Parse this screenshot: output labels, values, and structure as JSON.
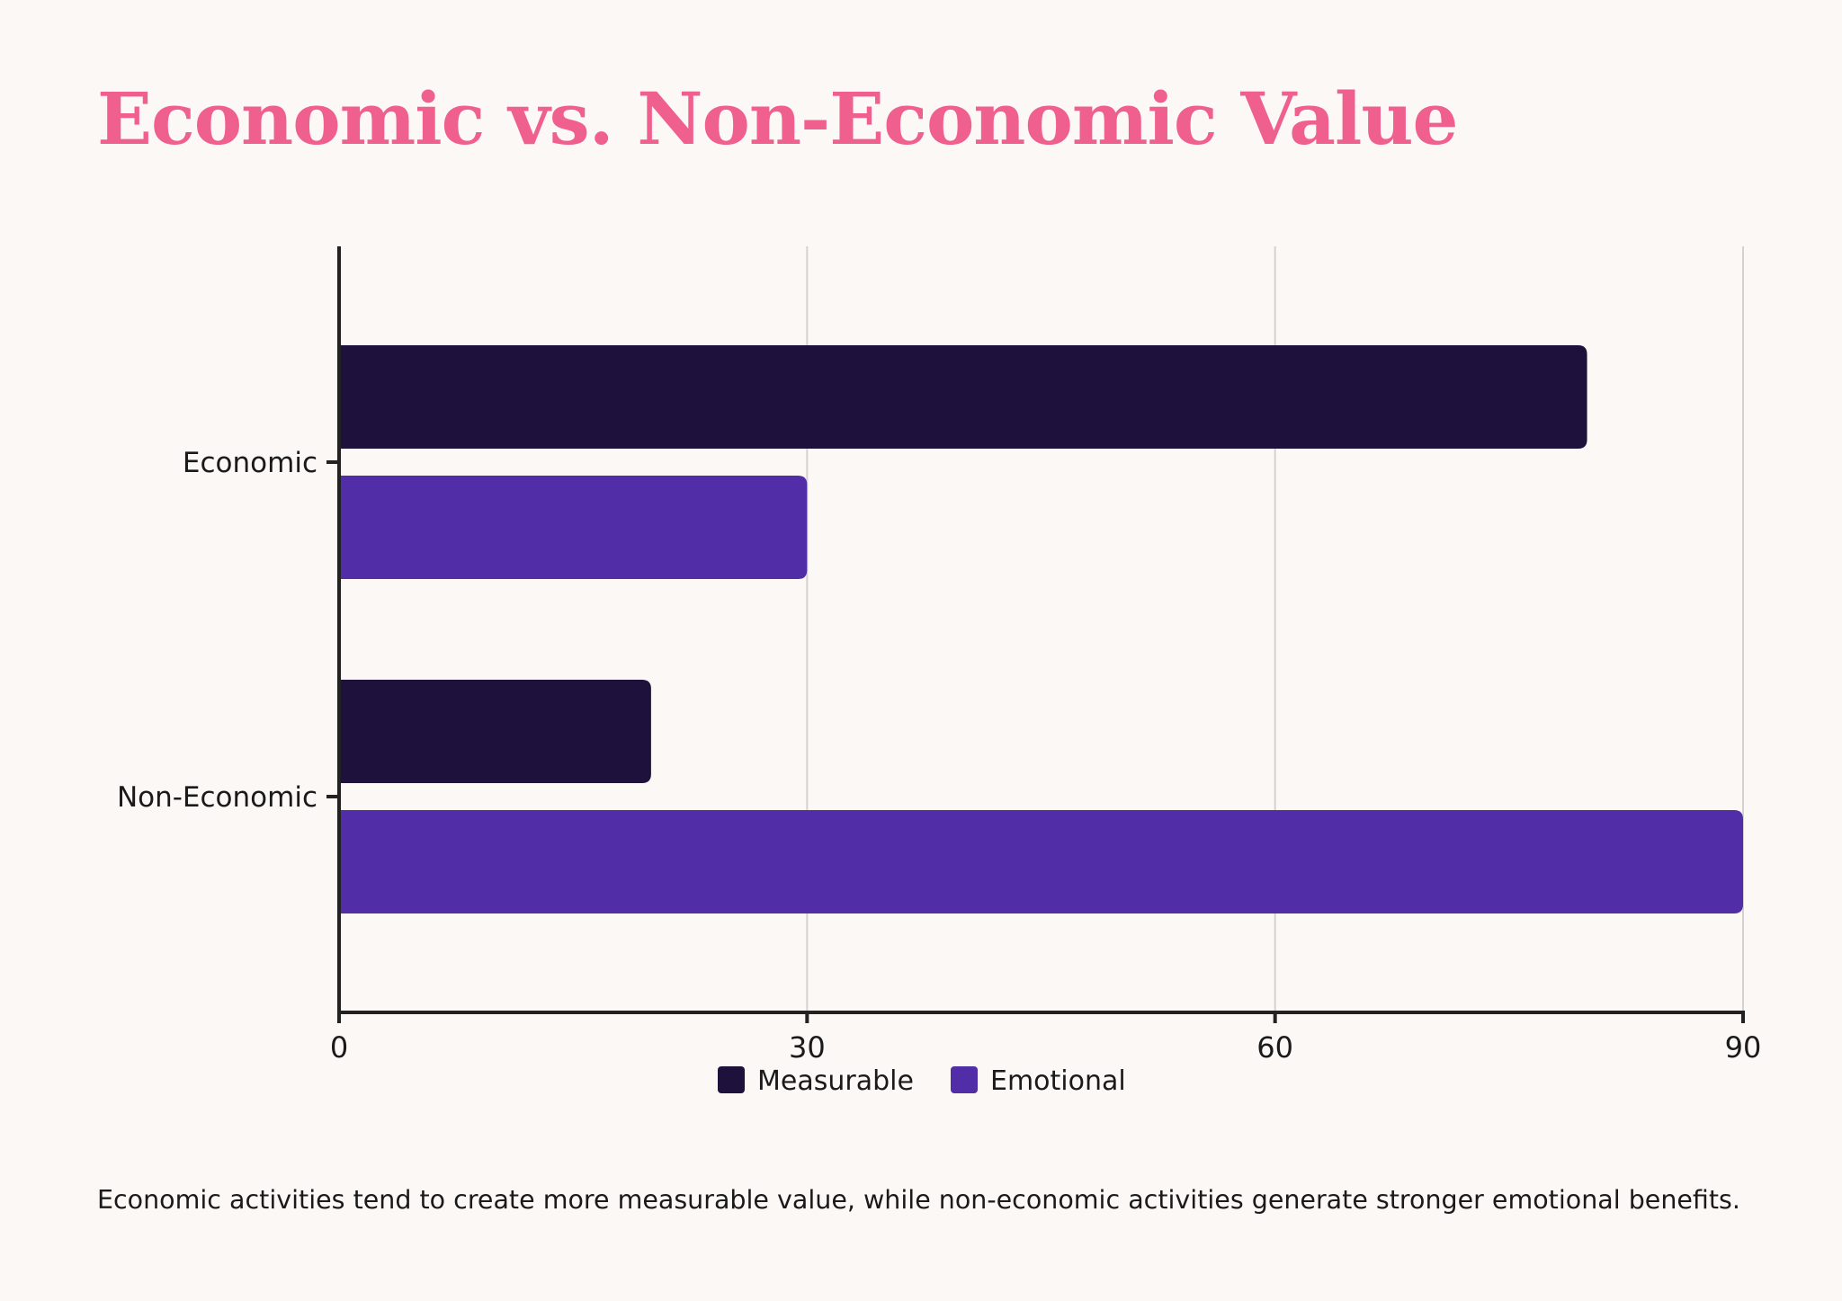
{
  "title": "Economic vs. Non-Economic Value",
  "caption": "Economic activities tend to create more measurable value, while non-economic activities generate stronger emotional benefits.",
  "colors": {
    "background": "#fcf8f6",
    "title": "#f0608e",
    "axis": "#222222",
    "grid": "#d4d2d0",
    "text": "#1a1a1a"
  },
  "chart_data": {
    "type": "bar",
    "orientation": "horizontal",
    "categories": [
      "Economic",
      "Non-Economic"
    ],
    "series": [
      {
        "name": "Measurable",
        "color": "#1e123c",
        "values": [
          80,
          20
        ]
      },
      {
        "name": "Emotional",
        "color": "#512da8",
        "values": [
          30,
          90
        ]
      }
    ],
    "x_ticks": [
      0,
      30,
      60,
      90
    ],
    "xlim": [
      0,
      90
    ],
    "xlabel": "",
    "ylabel": "",
    "grid": "vertical",
    "legend_position": "bottom-center"
  }
}
